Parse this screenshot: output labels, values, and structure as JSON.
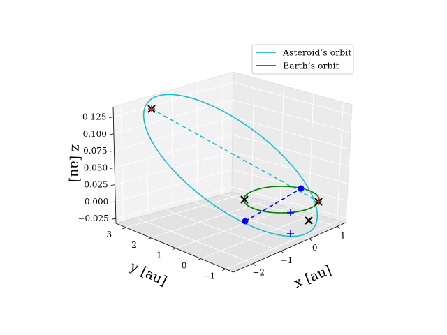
{
  "chart_data": {
    "type": "line",
    "projection": "3d",
    "title": "",
    "xlabel": "x [au]",
    "ylabel": "y [au]",
    "zlabel": "z [au]",
    "x_ticks": [
      "−2",
      "−1",
      "0",
      "1"
    ],
    "y_ticks": [
      "−1",
      "0",
      "1",
      "2",
      "3"
    ],
    "z_ticks": [
      "−0.025",
      "0.000",
      "0.025",
      "0.050",
      "0.075",
      "0.100",
      "0.125"
    ],
    "xlim": [
      -2.7,
      1.3
    ],
    "ylim": [
      -1.3,
      3.4
    ],
    "zlim": [
      -0.032,
      0.14
    ],
    "grid": true,
    "legend": {
      "position": "top-right",
      "entries": [
        {
          "label": "Asteroid’s orbit",
          "color": "#17becf"
        },
        {
          "label": "Earth’s orbit",
          "color": "#008000"
        }
      ]
    },
    "series": [
      {
        "name": "Asteroid’s orbit",
        "color": "#17becf",
        "shape": "ellipse",
        "semi_major_axis": 1.95,
        "eccentricity": 0.54,
        "perihelion": [
          0.88,
          0.32,
          0.0
        ],
        "aphelion": [
          -2.05,
          2.55,
          0.135
        ]
      },
      {
        "name": "Earth’s orbit",
        "color": "#008000",
        "shape": "circle",
        "radius": 1.0,
        "center": [
          0,
          0,
          0
        ]
      }
    ],
    "markers": [
      {
        "symbol": "x",
        "color": "#000000",
        "position": [
          -2.05,
          2.55,
          0.135
        ]
      },
      {
        "symbol": "x",
        "color": "#000000",
        "position": [
          0.4,
          0.9,
          0.0
        ]
      },
      {
        "symbol": "x",
        "color": "#000000",
        "position": [
          -0.4,
          -0.9,
          0.0
        ]
      },
      {
        "symbol": "x",
        "color": "#000000",
        "position": [
          0.92,
          0.38,
          0.0
        ]
      },
      {
        "symbol": "+",
        "color": "#d62728",
        "position": [
          -2.05,
          2.55,
          0.135
        ]
      },
      {
        "symbol": "+",
        "color": "#d62728",
        "position": [
          0.92,
          0.38,
          0.0
        ]
      },
      {
        "symbol": "dot",
        "color": "#0000ff",
        "position": [
          0.58,
          0.82,
          0.0
        ]
      },
      {
        "symbol": "dot",
        "color": "#0000ff",
        "position": [
          -1.3,
          0.3,
          0.0
        ]
      },
      {
        "symbol": "+",
        "color": "#0000ff",
        "position": [
          -0.8,
          0.3,
          0.0
        ]
      },
      {
        "symbol": "+",
        "color": "#0000ff",
        "position": [
          -0.45,
          -0.55,
          0.0
        ]
      }
    ]
  }
}
